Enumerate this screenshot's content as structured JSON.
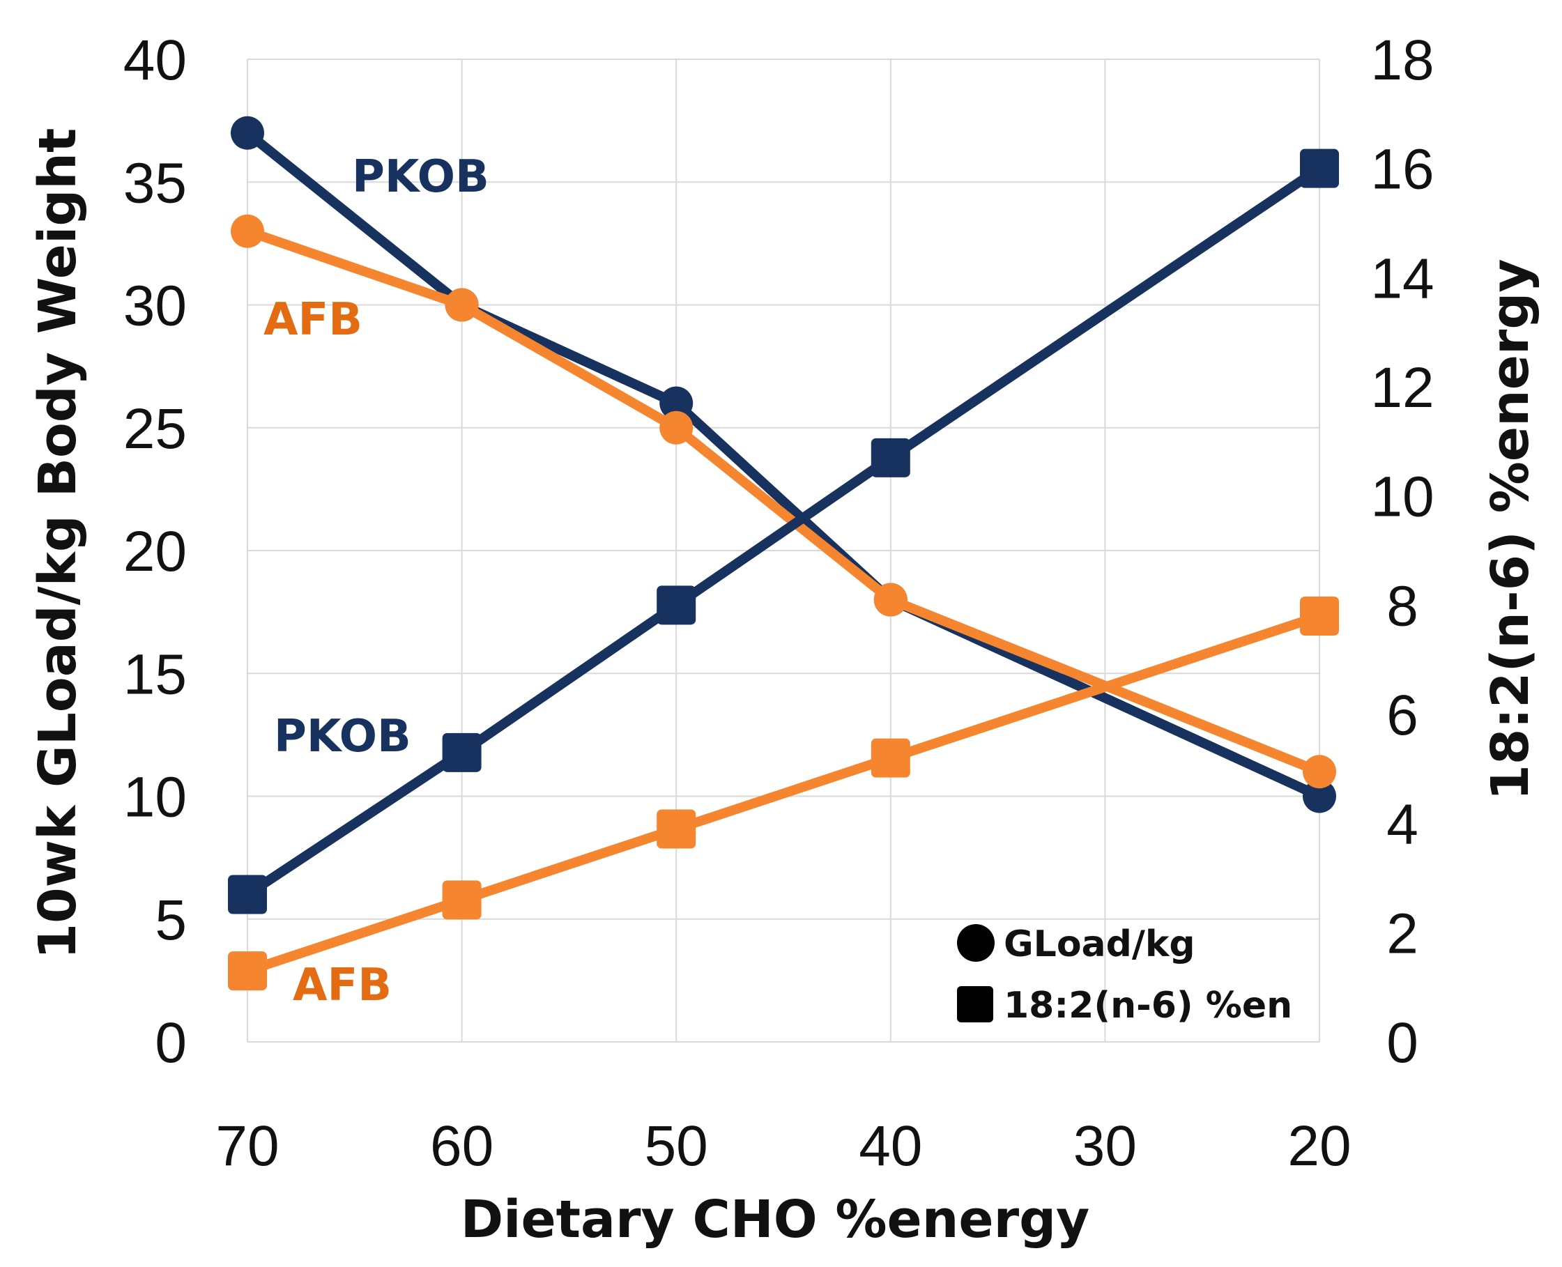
{
  "chart_data": {
    "type": "line",
    "x": [
      70,
      60,
      50,
      40,
      30,
      20
    ],
    "xlabel": "Dietary CHO %energy",
    "xlim": [
      70,
      20
    ],
    "x_reversed": true,
    "ylabel_left": "10wk GLoad/kg Body Weight",
    "ylim_left": [
      0,
      40
    ],
    "yticks_left": [
      0,
      5,
      10,
      15,
      20,
      25,
      30,
      35,
      40
    ],
    "ylabel_right": "18:2(n-6)  %energy",
    "ylim_right": [
      0,
      18
    ],
    "yticks_right": [
      0,
      2,
      4,
      6,
      8,
      10,
      12,
      14,
      16,
      18
    ],
    "xticks": [
      70,
      60,
      50,
      40,
      30,
      20
    ],
    "grid": true,
    "colors": {
      "PKOB": "#17325f",
      "AFB": "#f5862f",
      "AFB_label": "#e36c12"
    },
    "series": [
      {
        "label": "PKOB",
        "axis": "left",
        "marker": "circle",
        "color": "#17325f",
        "x": [
          70,
          60,
          50,
          40,
          20
        ],
        "values": [
          37,
          30,
          26,
          18,
          10
        ]
      },
      {
        "label": "AFB",
        "axis": "left",
        "marker": "circle",
        "color": "#f5862f",
        "x": [
          70,
          60,
          50,
          40,
          20
        ],
        "values": [
          33,
          30,
          25,
          18,
          11
        ]
      },
      {
        "label": "PKOB",
        "axis": "right",
        "marker": "square",
        "color": "#17325f",
        "x": [
          70,
          60,
          50,
          40,
          20
        ],
        "values": [
          2.7,
          5.3,
          8.0,
          10.7,
          16.0
        ]
      },
      {
        "label": "AFB",
        "axis": "right",
        "marker": "square",
        "color": "#f5862f",
        "x": [
          70,
          60,
          50,
          40,
          20
        ],
        "values": [
          1.3,
          2.6,
          3.9,
          5.2,
          7.8
        ]
      }
    ],
    "legend": {
      "position": "bottom-right",
      "items": [
        {
          "marker": "circle",
          "label": "GLoad/kg"
        },
        {
          "marker": "square",
          "label": "18:2(n-6) %en"
        }
      ]
    }
  }
}
